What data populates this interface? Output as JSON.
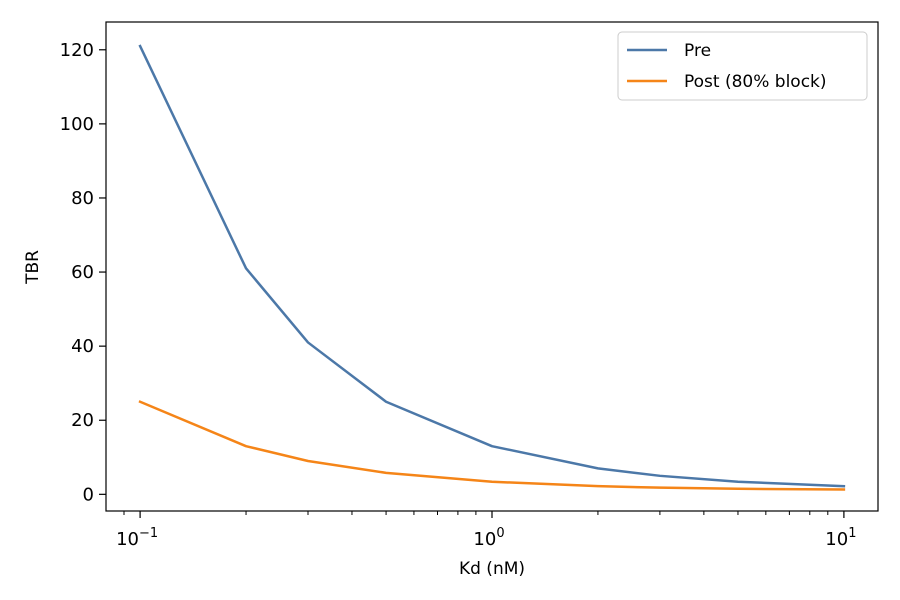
{
  "chart_data": {
    "type": "line",
    "title": "",
    "xlabel": "Kd (nM)",
    "ylabel": "TBR",
    "xscale": "log",
    "xlim": [
      0.08,
      12.5
    ],
    "ylim": [
      -4.5,
      127.5
    ],
    "grid": false,
    "legend_position": "top-right",
    "x": [
      0.1,
      0.2,
      0.3,
      0.5,
      1,
      2,
      3,
      5,
      10
    ],
    "series": [
      {
        "name": "Pre",
        "color": "#4c78a8",
        "values": [
          121,
          61,
          41,
          25,
          13,
          7,
          5,
          3.4,
          2.2
        ]
      },
      {
        "name": "Post (80% block)",
        "color": "#f58518",
        "values": [
          25,
          13,
          9,
          5.8,
          3.4,
          2.2,
          1.8,
          1.5,
          1.3
        ]
      }
    ],
    "xticks": [
      {
        "value": 0.1,
        "base": "10",
        "exp": "−1"
      },
      {
        "value": 1,
        "base": "10",
        "exp": "0"
      },
      {
        "value": 10,
        "base": "10",
        "exp": "1"
      }
    ],
    "yticks": [
      0,
      20,
      40,
      60,
      80,
      100,
      120
    ]
  }
}
